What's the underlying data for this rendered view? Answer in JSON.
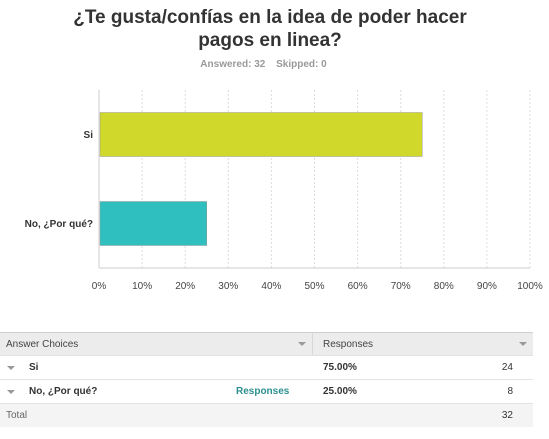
{
  "title_line1": "¿Te gusta/confías en la idea de poder hacer",
  "title_line2": "pagos en linea?",
  "answered_text": "Answered: 32",
  "skipped_text": "Skipped: 0",
  "chart_data": {
    "type": "bar",
    "orientation": "horizontal",
    "categories": [
      "Si",
      "No, ¿Por qué?"
    ],
    "values": [
      75,
      25
    ],
    "colors": [
      "#d0d92b",
      "#2fbfbf"
    ],
    "xlim": [
      0,
      100
    ],
    "xticks": [
      0,
      10,
      20,
      30,
      40,
      50,
      60,
      70,
      80,
      90,
      100
    ],
    "xtick_labels": [
      "0%",
      "10%",
      "20%",
      "30%",
      "40%",
      "50%",
      "60%",
      "70%",
      "80%",
      "90%",
      "100%"
    ],
    "grid": true
  },
  "table": {
    "header_choice": "Answer Choices",
    "header_responses": "Responses",
    "rows": [
      {
        "choice": "Si",
        "pct": "75.00%",
        "count": "24",
        "link": ""
      },
      {
        "choice": "No, ¿Por qué?",
        "pct": "25.00%",
        "count": "8",
        "link": "Responses"
      }
    ],
    "total_label": "Total",
    "total_value": "32"
  }
}
